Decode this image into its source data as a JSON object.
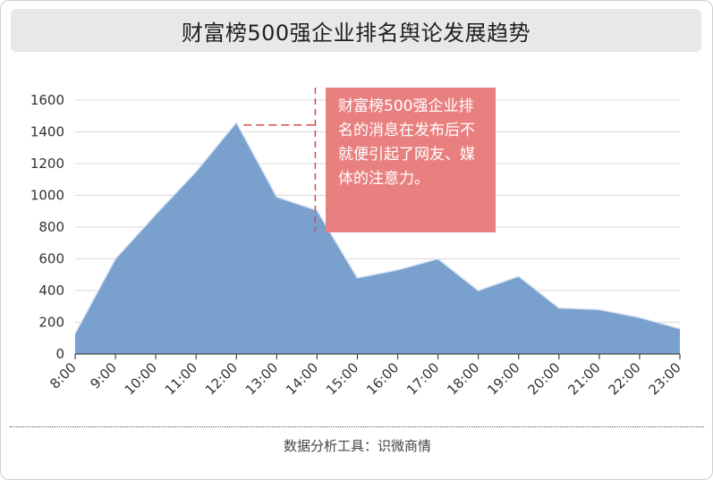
{
  "title": "财富榜500强企业排名舆论发展趋势",
  "footer": "数据分析工具：识微商情",
  "annotation": "财富榜500强企业排名的消息在发布后不就便引起了网友、媒体的注意力。",
  "colors": {
    "area_fill": "#7aa0ce",
    "area_stroke": "#dbe6f3",
    "annotation_bg": "#e98080",
    "marker_line": "#d94a4a",
    "gridline": "#d9d9d9",
    "title_bg": "#e8e8e8"
  },
  "chart_data": {
    "type": "area",
    "title": "财富榜500强企业排名舆论发展趋势",
    "xlabel": "",
    "ylabel": "",
    "categories": [
      "8:00",
      "9:00",
      "10:00",
      "11:00",
      "12:00",
      "13:00",
      "14:00",
      "15:00",
      "16:00",
      "17:00",
      "18:00",
      "19:00",
      "20:00",
      "21:00",
      "22:00",
      "23:00"
    ],
    "series": [
      {
        "values": [
          130,
          600,
          880,
          1150,
          1460,
          990,
          905,
          480,
          530,
          600,
          400,
          490,
          290,
          280,
          230,
          160
        ]
      }
    ],
    "ylim": [
      0,
      1600
    ],
    "yticks": [
      0,
      200,
      400,
      600,
      800,
      1000,
      1200,
      1400,
      1600
    ],
    "grid": true,
    "legend": "none",
    "annotation_x": "14:00"
  }
}
